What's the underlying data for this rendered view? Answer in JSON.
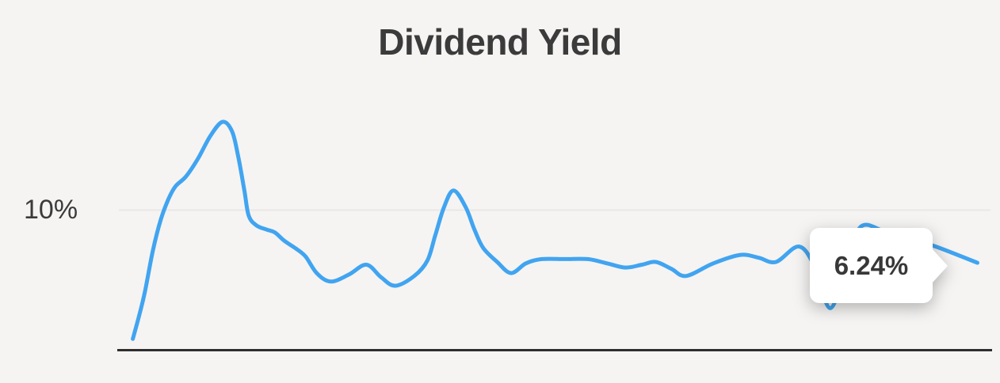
{
  "title": "Dividend Yield",
  "y_axis": {
    "label": "10%",
    "gridline_value_pct": 10
  },
  "tooltip": {
    "value": "6.24%"
  },
  "colors": {
    "background": "#f5f4f3",
    "line": "#41a4f0",
    "axis": "#2e2e2e",
    "gridline": "#e9e8e7",
    "text": "#3b3b3b",
    "tooltip_bg": "#ffffff",
    "tooltip_text": "#383838"
  },
  "chart_data": {
    "type": "line",
    "title": "Dividend Yield",
    "ylabel": "",
    "xlabel": "",
    "ylim_pct": [
      0,
      18
    ],
    "y_tick_labels": [
      "10%"
    ],
    "x_tick_labels": [],
    "gridlines_pct": [
      10
    ],
    "legend": false,
    "series": [
      {
        "name": "Dividend Yield",
        "unit": "%",
        "last_value_pct": 6.24,
        "last_value_label": "6.24%",
        "points": [
          [
            0.016,
            0.8
          ],
          [
            0.023,
            2.4
          ],
          [
            0.03,
            4.2
          ],
          [
            0.039,
            7.1
          ],
          [
            0.048,
            9.3
          ],
          [
            0.057,
            10.8
          ],
          [
            0.065,
            11.7
          ],
          [
            0.077,
            12.4
          ],
          [
            0.091,
            13.7
          ],
          [
            0.105,
            15.3
          ],
          [
            0.119,
            16.3
          ],
          [
            0.13,
            15.6
          ],
          [
            0.137,
            13.8
          ],
          [
            0.144,
            11.4
          ],
          [
            0.149,
            9.6
          ],
          [
            0.158,
            8.9
          ],
          [
            0.17,
            8.6
          ],
          [
            0.179,
            8.4
          ],
          [
            0.19,
            7.8
          ],
          [
            0.202,
            7.3
          ],
          [
            0.214,
            6.7
          ],
          [
            0.227,
            5.5
          ],
          [
            0.243,
            4.9
          ],
          [
            0.264,
            5.4
          ],
          [
            0.284,
            6.1
          ],
          [
            0.301,
            5.2
          ],
          [
            0.317,
            4.6
          ],
          [
            0.339,
            5.3
          ],
          [
            0.354,
            6.4
          ],
          [
            0.363,
            8.2
          ],
          [
            0.373,
            10.2
          ],
          [
            0.384,
            11.4
          ],
          [
            0.398,
            10.2
          ],
          [
            0.408,
            8.6
          ],
          [
            0.418,
            7.3
          ],
          [
            0.434,
            6.3
          ],
          [
            0.45,
            5.5
          ],
          [
            0.467,
            6.2
          ],
          [
            0.485,
            6.5
          ],
          [
            0.512,
            6.5
          ],
          [
            0.538,
            6.5
          ],
          [
            0.56,
            6.2
          ],
          [
            0.581,
            5.9
          ],
          [
            0.6,
            6.1
          ],
          [
            0.616,
            6.3
          ],
          [
            0.634,
            5.8
          ],
          [
            0.651,
            5.3
          ],
          [
            0.682,
            6.2
          ],
          [
            0.713,
            6.8
          ],
          [
            0.734,
            6.6
          ],
          [
            0.754,
            6.3
          ],
          [
            0.78,
            7.4
          ],
          [
            0.798,
            6.0
          ],
          [
            0.816,
            3.0
          ],
          [
            0.834,
            5.9
          ],
          [
            0.851,
            8.8
          ],
          [
            0.878,
            8.5
          ],
          [
            0.91,
            7.9
          ],
          [
            0.937,
            7.4
          ],
          [
            0.985,
            6.24
          ]
        ]
      }
    ]
  }
}
